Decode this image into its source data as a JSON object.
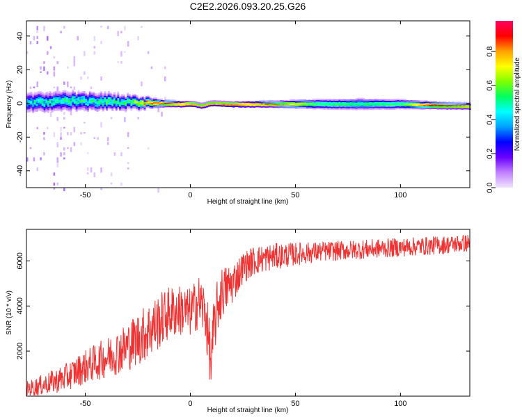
{
  "title": "C2E2.2026.093.20.25.G26",
  "chart_data": [
    {
      "type": "heatmap",
      "name": "spectrogram",
      "xlabel": "Height of straight line (km)",
      "ylabel": "Frequency (Hz)",
      "xlim": [
        -78,
        133
      ],
      "ylim": [
        -50,
        49
      ],
      "xticks": [
        -50,
        0,
        50,
        100
      ],
      "xtick_labels": [
        "-50",
        "0",
        "50",
        "100"
      ],
      "yticks": [
        -40,
        -20,
        0,
        20,
        40
      ],
      "ytick_labels": [
        "-40",
        "-20",
        "0",
        "20",
        "40"
      ],
      "colorbar": {
        "label": "Normalized spectral amplitude",
        "range": [
          0,
          0.98
        ],
        "ticks": [
          0.0,
          0.2,
          0.4,
          0.6,
          0.8
        ],
        "tick_labels": [
          "0.0",
          "0.2",
          "0.4",
          "0.6",
          "0.8"
        ],
        "colormap": [
          "#f0e4ff",
          "#c080ff",
          "#6a00ff",
          "#0000ff",
          "#00a0ff",
          "#00ffff",
          "#00ff60",
          "#7fff00",
          "#ffff00",
          "#ffa000",
          "#ff0000",
          "#ff0060"
        ]
      },
      "band_center_profile": {
        "x": [
          -78,
          -60,
          -45,
          -30,
          -15,
          -5,
          0,
          5,
          10,
          20,
          40,
          60,
          80,
          100,
          115,
          133
        ],
        "frequency": [
          0.8,
          2.0,
          1.5,
          1.0,
          0.4,
          0.0,
          0.2,
          -1.0,
          0.4,
          -0.2,
          0.0,
          0.0,
          0.0,
          0.0,
          -0.8,
          -1.3
        ]
      },
      "band_halfwidth_profile": {
        "x": [
          -78,
          -60,
          -40,
          -25,
          -12,
          0,
          20,
          40,
          60,
          80,
          100,
          115,
          133
        ],
        "halfwidth": [
          4.5,
          4.5,
          4.0,
          3.0,
          1.6,
          1.3,
          1.3,
          1.6,
          2.2,
          2.5,
          2.2,
          1.7,
          1.5
        ]
      },
      "peak_amplitude_profile": {
        "x": [
          -78,
          -60,
          -45,
          -30,
          -20,
          -10,
          0,
          20,
          40,
          60,
          80,
          100,
          110,
          120,
          133
        ],
        "amplitude": [
          0.45,
          0.5,
          0.5,
          0.55,
          0.85,
          0.9,
          0.85,
          0.9,
          0.88,
          0.6,
          0.55,
          0.6,
          0.88,
          0.9,
          0.85
        ]
      }
    },
    {
      "type": "line",
      "name": "snr",
      "xlabel": "Height of straight line (km)",
      "ylabel": "SNR (10 * v/v)",
      "xlim": [
        -78,
        133
      ],
      "ylim": [
        0,
        7400
      ],
      "xticks": [
        -50,
        0,
        50,
        100
      ],
      "xtick_labels": [
        "-50",
        "0",
        "50",
        "100"
      ],
      "yticks": [
        2000,
        4000,
        6000
      ],
      "ytick_labels": [
        "2000",
        "4000",
        "6000"
      ],
      "color": "#f03232",
      "trend": {
        "x": [
          -78,
          -70,
          -60,
          -50,
          -40,
          -30,
          -20,
          -10,
          -5,
          0,
          4,
          7,
          9,
          10,
          11,
          13,
          15,
          20,
          25,
          30,
          40,
          50,
          60,
          80,
          100,
          120,
          133
        ],
        "y": [
          300,
          500,
          800,
          1300,
          1700,
          2200,
          2900,
          3700,
          3800,
          3700,
          4200,
          3800,
          2200,
          1300,
          2800,
          4000,
          4600,
          5000,
          5700,
          6000,
          6200,
          6300,
          6400,
          6500,
          6600,
          6700,
          6800
        ]
      },
      "noise_amplitude": {
        "x": [
          -78,
          -40,
          -20,
          0,
          10,
          25,
          60,
          133
        ],
        "y": [
          350,
          900,
          1300,
          1100,
          1400,
          700,
          450,
          400
        ]
      }
    }
  ]
}
